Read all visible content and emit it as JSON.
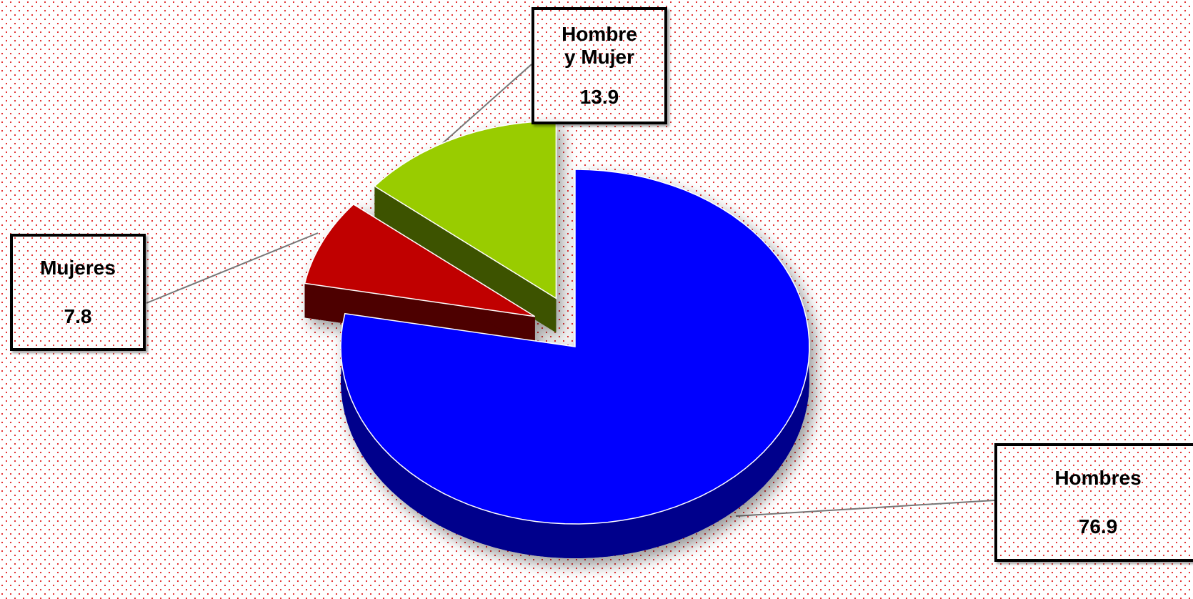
{
  "chart_data": {
    "type": "pie",
    "categories": [
      "Hombres",
      "Mujeres",
      "Hombre y Mujer"
    ],
    "values": [
      76.9,
      7.8,
      13.9
    ],
    "colors": [
      "#0000ff",
      "#c00000",
      "#99cc00"
    ]
  }
}
